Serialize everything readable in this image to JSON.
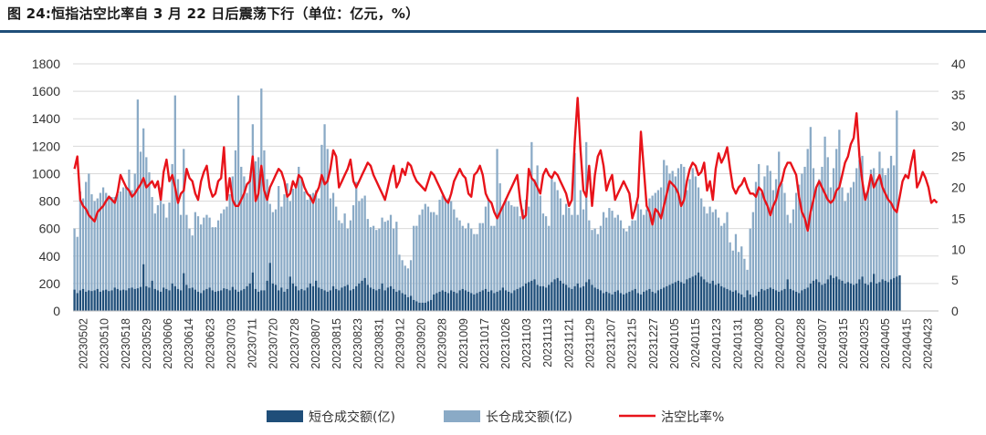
{
  "title": "图 24:恒指沽空比率自 3 月 22 日后震荡下行（单位：亿元，%）",
  "colors": {
    "short_bar": "#1f4e79",
    "long_bar": "#8aaac6",
    "ratio_line": "#e8131a",
    "title_rule": "#1f4e79"
  },
  "chart_data": {
    "type": "bar+line",
    "title": "",
    "xlabel": "",
    "ylabel": "",
    "y_left": {
      "min": 0,
      "max": 1800,
      "ticks": [
        0,
        200,
        400,
        600,
        800,
        1000,
        1200,
        1400,
        1600,
        1800
      ]
    },
    "y_right": {
      "min": 0,
      "max": 40,
      "ticks": [
        0,
        5,
        10,
        15,
        20,
        25,
        30,
        35,
        40
      ]
    },
    "x_tick_labels": [
      "20230502",
      "20230510",
      "20230518",
      "20230529",
      "20230606",
      "20230614",
      "20230623",
      "20230703",
      "20230711",
      "20230720",
      "20230728",
      "20230807",
      "20230815",
      "20230823",
      "20230831",
      "20230912",
      "20230920",
      "20230928",
      "20231009",
      "20231017",
      "20231026",
      "20231103",
      "20231113",
      "20231121",
      "20231129",
      "20231207",
      "20231215",
      "20231227",
      "20240105",
      "20240115",
      "20240123",
      "20240131",
      "20240208",
      "20240220",
      "20240228",
      "20240307",
      "20240315",
      "20240325",
      "20240405",
      "20240415",
      "20240423"
    ],
    "legend": {
      "placement": "bottom"
    },
    "series": [
      {
        "name": "短仓成交额(亿)",
        "kind": "bar",
        "axis": "left",
        "values": [
          155,
          130,
          150,
          160,
          140,
          150,
          145,
          150,
          160,
          140,
          150,
          155,
          145,
          150,
          170,
          160,
          150,
          155,
          150,
          165,
          170,
          160,
          165,
          175,
          340,
          180,
          170,
          220,
          160,
          150,
          140,
          170,
          160,
          150,
          200,
          180,
          160,
          150,
          275,
          190,
          165,
          170,
          155,
          140,
          130,
          150,
          160,
          170,
          150,
          140,
          145,
          150,
          165,
          160,
          150,
          175,
          155,
          140,
          150,
          160,
          180,
          200,
          280,
          160,
          140,
          150,
          150,
          220,
          350,
          200,
          190,
          150,
          170,
          140,
          160,
          250,
          200,
          180,
          150,
          160,
          150,
          170,
          200,
          180,
          220,
          170,
          160,
          150,
          140,
          150,
          180,
          160,
          150,
          170,
          180,
          190,
          150,
          160,
          180,
          200,
          220,
          240,
          190,
          170,
          160,
          150,
          160,
          200,
          150,
          170,
          180,
          160,
          140,
          150,
          130,
          120,
          100,
          110,
          80,
          70,
          60,
          60,
          60,
          70,
          80,
          120,
          130,
          140,
          150,
          140,
          130,
          150,
          140,
          130,
          150,
          160,
          150,
          140,
          130,
          120,
          130,
          140,
          150,
          160,
          140,
          150,
          130,
          140,
          150,
          170,
          150,
          140,
          130,
          150,
          160,
          170,
          180,
          200,
          210,
          220,
          230,
          190,
          180,
          180,
          170,
          190,
          210,
          230,
          240,
          220,
          200,
          190,
          170,
          160,
          180,
          200,
          170,
          180,
          210,
          230,
          190,
          170,
          160,
          150,
          130,
          140,
          130,
          120,
          140,
          150,
          130,
          120,
          130,
          140,
          150,
          160,
          130,
          120,
          140,
          150,
          160,
          140,
          130,
          150,
          160,
          170,
          180,
          190,
          200,
          210,
          220,
          210,
          200,
          230,
          240,
          250,
          260,
          280,
          250,
          230,
          210,
          200,
          220,
          190,
          200,
          180,
          170,
          160,
          150,
          140,
          150,
          130,
          120,
          100,
          150,
          120,
          100,
          110,
          140,
          160,
          150,
          160,
          170,
          160,
          150,
          140,
          150,
          160,
          230,
          160,
          150,
          140,
          130,
          150,
          160,
          170,
          200,
          220,
          230,
          210,
          190,
          200,
          230,
          260,
          240,
          250,
          230,
          220,
          200,
          210,
          200,
          190,
          200,
          230,
          250,
          200,
          190,
          210,
          270,
          200,
          210,
          230,
          220,
          210,
          230,
          240,
          250,
          260
        ]
      },
      {
        "name": "长仓成交额(亿)",
        "kind": "bar",
        "axis": "left",
        "values": [
          600,
          540,
          870,
          820,
          940,
          1000,
          850,
          800,
          820,
          860,
          900,
          860,
          840,
          830,
          830,
          850,
          870,
          900,
          900,
          1030,
          880,
          1000,
          1540,
          1160,
          1330,
          1120,
          1010,
          830,
          710,
          770,
          900,
          780,
          680,
          790,
          1070,
          1570,
          960,
          700,
          1180,
          700,
          600,
          550,
          720,
          690,
          630,
          680,
          700,
          680,
          610,
          610,
          660,
          710,
          740,
          760,
          850,
          980,
          1170,
          1570,
          1050,
          980,
          860,
          960,
          1360,
          1090,
          1120,
          1620,
          1170,
          960,
          780,
          720,
          740,
          910,
          760,
          850,
          930,
          800,
          890,
          920,
          1050,
          960,
          870,
          810,
          850,
          860,
          880,
          820,
          1210,
          1360,
          1180,
          820,
          860,
          760,
          660,
          640,
          710,
          600,
          660,
          770,
          940,
          800,
          820,
          840,
          670,
          610,
          620,
          590,
          600,
          680,
          650,
          660,
          700,
          600,
          650,
          410,
          370,
          330,
          310,
          370,
          620,
          620,
          700,
          740,
          780,
          760,
          720,
          720,
          700,
          810,
          840,
          820,
          820,
          800,
          740,
          680,
          660,
          620,
          600,
          640,
          600,
          560,
          560,
          640,
          640,
          760,
          820,
          620,
          620,
          1180,
          930,
          760,
          820,
          800,
          770,
          760,
          760,
          690,
          740,
          810,
          760,
          1230,
          960,
          1060,
          840,
          710,
          690,
          620,
          960,
          940,
          880,
          820,
          700,
          780,
          750,
          700,
          1150,
          700,
          880,
          740,
          1230,
          660,
          590,
          600,
          560,
          620,
          720,
          680,
          750,
          730,
          680,
          700,
          660,
          600,
          580,
          620,
          660,
          660,
          780,
          740,
          700,
          740,
          820,
          840,
          860,
          880,
          900,
          1100,
          1060,
          1000,
          1020,
          980,
          1040,
          1070,
          1050,
          880,
          960,
          1040,
          980,
          900,
          820,
          760,
          710,
          760,
          720,
          740,
          680,
          620,
          640,
          720,
          500,
          440,
          560,
          430,
          470,
          380,
          300,
          600,
          720,
          940,
          1070,
          860,
          980,
          1060,
          1020,
          880,
          960,
          1160,
          930,
          860,
          700,
          640,
          740,
          860,
          920,
          1000,
          1050,
          1180,
          1340,
          1040,
          900,
          960,
          1050,
          1270,
          1120,
          900,
          1040,
          1180,
          1320,
          900,
          800,
          860,
          900,
          940,
          1040,
          1100,
          1130,
          860,
          880,
          1030,
          1040,
          960,
          1160,
          1040,
          990,
          1040,
          1130,
          1060,
          1460
        ]
      },
      {
        "name": "沽空比率%",
        "kind": "line",
        "axis": "right",
        "values": [
          23,
          25,
          18,
          17,
          16.5,
          15.5,
          15,
          14.5,
          16,
          16.5,
          17,
          17.8,
          18.5,
          18,
          17.5,
          19.2,
          22,
          21,
          20,
          19.5,
          18.5,
          19,
          19.8,
          20.5,
          21.5,
          20,
          20.5,
          21,
          20,
          21,
          18,
          22.5,
          24.5,
          21,
          22,
          20,
          17.5,
          19,
          19.5,
          23,
          21.5,
          21,
          19,
          18,
          21,
          22.5,
          23.5,
          20,
          18.5,
          19,
          21,
          21.5,
          26.5,
          18,
          21.5,
          18,
          17,
          17,
          18,
          19,
          20.5,
          21,
          25,
          17.8,
          19,
          23.5,
          19.5,
          18,
          20,
          21,
          22,
          23,
          22.5,
          21,
          18.5,
          19,
          21,
          20,
          22,
          21.5,
          20,
          19,
          18.5,
          17.5,
          19,
          20,
          22,
          20.5,
          21,
          23,
          26,
          25,
          20,
          21,
          22,
          23,
          24.5,
          21,
          20,
          21,
          22,
          23,
          24,
          23.5,
          22,
          21,
          20,
          19,
          18,
          20,
          22,
          23.5,
          20,
          21,
          23,
          22,
          24,
          23.5,
          22,
          21,
          20.5,
          20,
          19.5,
          21,
          22.5,
          22,
          21,
          20,
          19,
          18,
          17.5,
          19,
          21,
          22,
          23,
          22,
          21.5,
          19,
          18.5,
          22,
          22.5,
          23.5,
          22,
          19,
          18,
          17.5,
          16,
          15,
          16,
          17,
          18,
          19,
          20,
          21,
          22,
          18,
          15,
          15.5,
          23,
          21.5,
          21,
          20,
          19,
          22,
          23,
          22,
          21.5,
          22.5,
          22,
          21,
          20,
          19,
          17,
          18,
          27.5,
          34.5,
          26,
          19.5,
          18.5,
          23.5,
          17,
          22,
          25,
          26,
          23.5,
          19.5,
          21,
          22,
          18,
          19,
          20,
          21,
          20,
          19,
          15,
          16.5,
          18.5,
          29,
          23,
          17,
          16,
          14,
          16.5,
          16,
          15,
          17,
          19,
          21,
          20.5,
          20,
          19,
          17,
          18,
          21,
          23,
          24,
          23.5,
          22,
          22.5,
          24,
          19.5,
          21,
          18,
          23,
          25.5,
          24,
          25,
          26.5,
          23,
          20,
          19,
          20,
          20.5,
          21.5,
          20,
          19,
          19,
          18.5,
          20,
          19.5,
          18,
          17,
          15.5,
          17,
          18,
          20,
          21,
          23,
          24,
          24,
          23,
          22,
          18.5,
          16,
          15,
          13,
          16,
          18,
          20,
          21,
          20,
          19,
          18,
          17.5,
          18,
          19.5,
          20,
          22,
          24,
          25,
          27,
          28,
          32,
          25,
          21,
          18,
          19.5,
          22,
          20,
          21,
          22,
          20,
          19,
          18,
          17.5,
          16.5,
          16,
          18.5,
          21,
          22,
          21.5,
          24,
          26,
          20,
          21,
          22.5,
          21.5,
          20,
          17.5,
          18,
          17.5
        ]
      }
    ]
  }
}
